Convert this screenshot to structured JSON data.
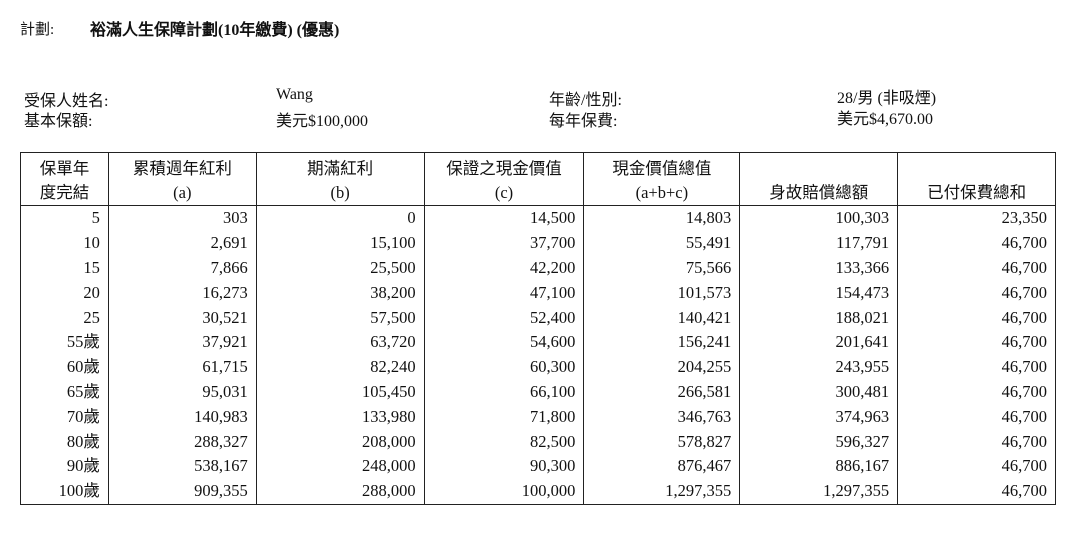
{
  "plan": {
    "label": "計劃:",
    "name": "裕滿人生保障計劃(10年繳費) (優惠)"
  },
  "info": {
    "insured_name_label": "受保人姓名:",
    "insured_name": "Wang",
    "basic_sum_label": "基本保額:",
    "basic_sum": "美元$100,000",
    "age_gender_label": "年齡/性別:",
    "age_gender": "28/男 (非吸煙)",
    "annual_premium_label": "每年保費:",
    "annual_premium": "美元$4,670.00"
  },
  "table": {
    "headers": [
      [
        "保單年",
        "度完結"
      ],
      [
        "累積週年紅利",
        "(a)"
      ],
      [
        "期滿紅利",
        "(b)"
      ],
      [
        "保證之現金價值",
        "(c)"
      ],
      [
        "現金價值總值",
        "(a+b+c)"
      ],
      [
        "",
        "身故賠償總額"
      ],
      [
        "",
        "已付保費總和"
      ]
    ],
    "rows": [
      [
        "5",
        "303",
        "0",
        "14,500",
        "14,803",
        "100,303",
        "23,350"
      ],
      [
        "10",
        "2,691",
        "15,100",
        "37,700",
        "55,491",
        "117,791",
        "46,700"
      ],
      [
        "15",
        "7,866",
        "25,500",
        "42,200",
        "75,566",
        "133,366",
        "46,700"
      ],
      [
        "20",
        "16,273",
        "38,200",
        "47,100",
        "101,573",
        "154,473",
        "46,700"
      ],
      [
        "25",
        "30,521",
        "57,500",
        "52,400",
        "140,421",
        "188,021",
        "46,700"
      ],
      [
        "55歲",
        "37,921",
        "63,720",
        "54,600",
        "156,241",
        "201,641",
        "46,700"
      ],
      [
        "60歲",
        "61,715",
        "82,240",
        "60,300",
        "204,255",
        "243,955",
        "46,700"
      ],
      [
        "65歲",
        "95,031",
        "105,450",
        "66,100",
        "266,581",
        "300,481",
        "46,700"
      ],
      [
        "70歲",
        "140,983",
        "133,980",
        "71,800",
        "346,763",
        "374,963",
        "46,700"
      ],
      [
        "80歲",
        "288,327",
        "208,000",
        "82,500",
        "578,827",
        "596,327",
        "46,700"
      ],
      [
        "90歲",
        "538,167",
        "248,000",
        "90,300",
        "876,467",
        "886,167",
        "46,700"
      ],
      [
        "100歲",
        "909,355",
        "288,000",
        "100,000",
        "1,297,355",
        "1,297,355",
        "46,700"
      ]
    ]
  }
}
